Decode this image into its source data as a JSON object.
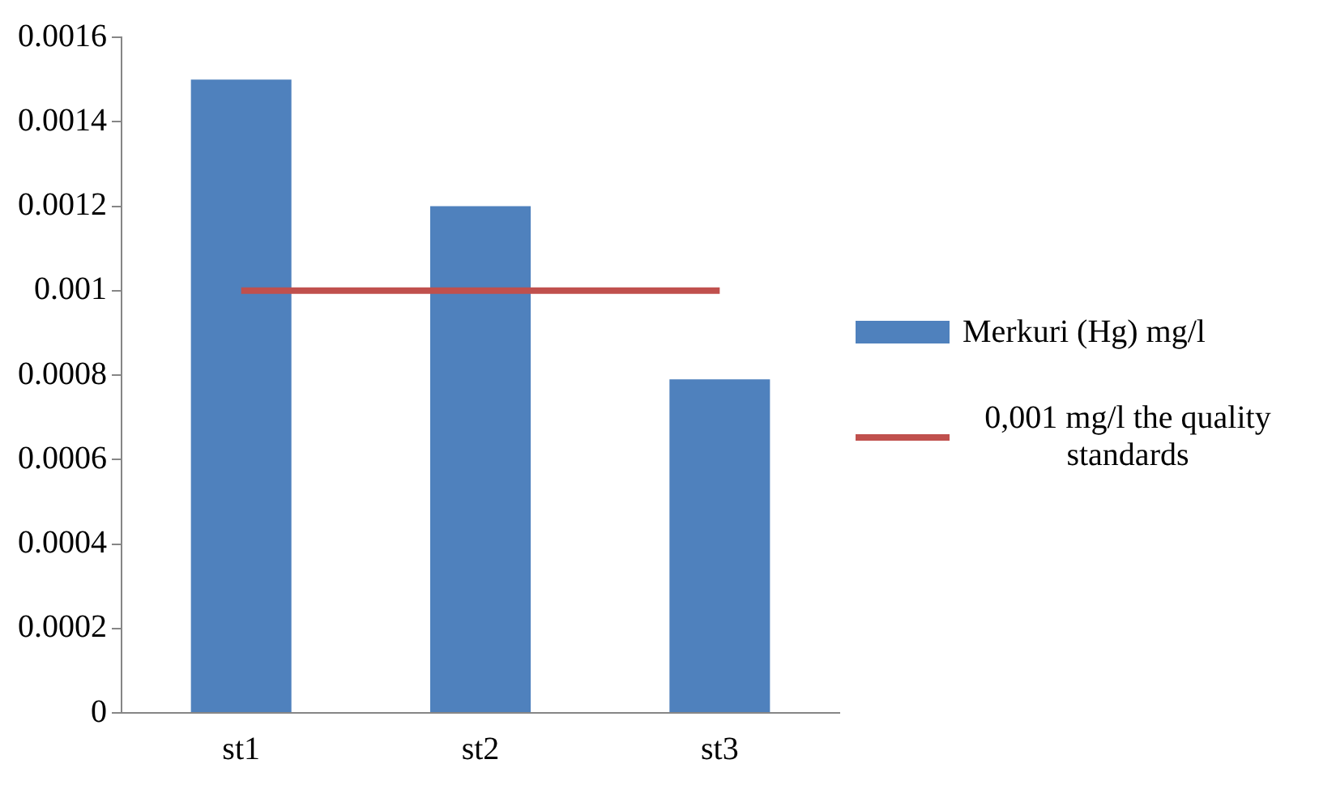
{
  "chart_data": {
    "type": "bar",
    "categories": [
      "st1",
      "st2",
      "st3"
    ],
    "series": [
      {
        "name": "Merkuri (Hg) mg/l",
        "color": "#4f81bd",
        "values": [
          0.0015,
          0.0012,
          0.00079
        ]
      },
      {
        "name": "0,001 mg/l the quality standards",
        "type": "line",
        "color": "#c0504d",
        "values": [
          0.001,
          0.001,
          0.001
        ]
      }
    ],
    "ylim": [
      0,
      0.0016
    ],
    "yticks": [
      {
        "value": 0,
        "label": "0"
      },
      {
        "value": 0.0002,
        "label": "0.0002"
      },
      {
        "value": 0.0004,
        "label": "0.0004"
      },
      {
        "value": 0.0006,
        "label": "0.0006"
      },
      {
        "value": 0.0008,
        "label": "0.0008"
      },
      {
        "value": 0.001,
        "label": "0.001"
      },
      {
        "value": 0.0012,
        "label": "0.0012"
      },
      {
        "value": 0.0014,
        "label": "0.0014"
      },
      {
        "value": 0.0016,
        "label": "0.0016"
      }
    ],
    "grid": false,
    "legend": "right",
    "marker": "none"
  }
}
